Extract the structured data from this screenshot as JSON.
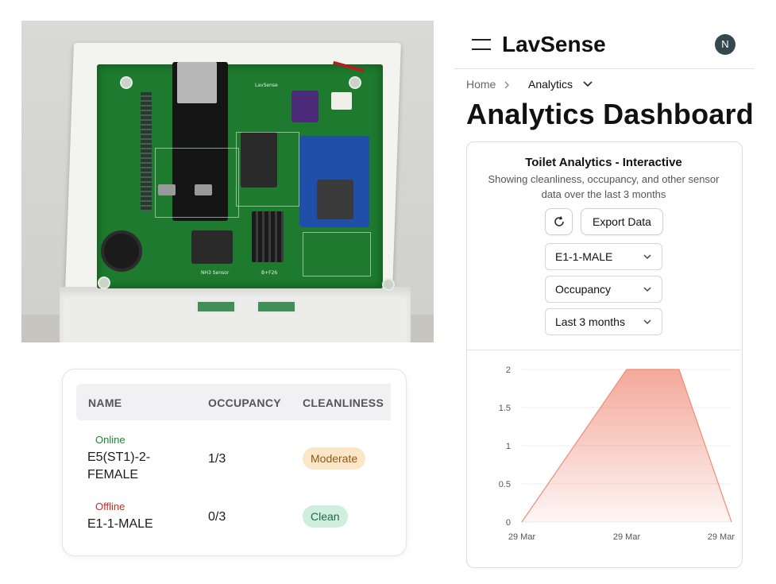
{
  "photo": {
    "pcb_silk_title": "LavSense",
    "pcb_label_left": "NH3 Sensor",
    "pcb_label_right": "B+F26"
  },
  "status_table": {
    "headers": [
      "NAME",
      "OCCUPANCY",
      "CLEANLINESS"
    ],
    "rows": [
      {
        "status": "Online",
        "status_color": "#1a8a2e",
        "name_line1": "E5(ST1)-2-",
        "name_line2": "FEMALE",
        "occupancy": "1/3",
        "cleanliness": "Moderate"
      },
      {
        "status": "Offline",
        "status_color": "#d4281e",
        "name_line1": "E1-1-MALE",
        "name_line2": "",
        "occupancy": "0/3",
        "cleanliness": "Clean"
      }
    ]
  },
  "app": {
    "logo": "LavSense",
    "avatar_initial": "N",
    "breadcrumb": {
      "home": "Home",
      "current": "Analytics"
    },
    "page_title": "Analytics Dashboard"
  },
  "analytics_card": {
    "title": "Toilet Analytics - Interactive",
    "description": "Showing cleanliness, occupancy, and other sensor data over the last 3 months",
    "export_label": "Export Data",
    "toilet_select": "E1-1-MALE",
    "metric_select": "Occupancy",
    "range_select": "Last 3 months"
  },
  "chart_data": {
    "type": "area",
    "x": [
      "29 Mar",
      "29 Mar",
      "29 Mar",
      "29 Mar"
    ],
    "x_ticks": [
      "29 Mar",
      "29 Mar",
      "29 Mar"
    ],
    "values": [
      0,
      2,
      2,
      0
    ],
    "y_ticks": [
      "2",
      "1.5",
      "1",
      "0.5",
      "0"
    ],
    "ylim": [
      0,
      2
    ],
    "grid": true,
    "color": "#f08b78"
  }
}
